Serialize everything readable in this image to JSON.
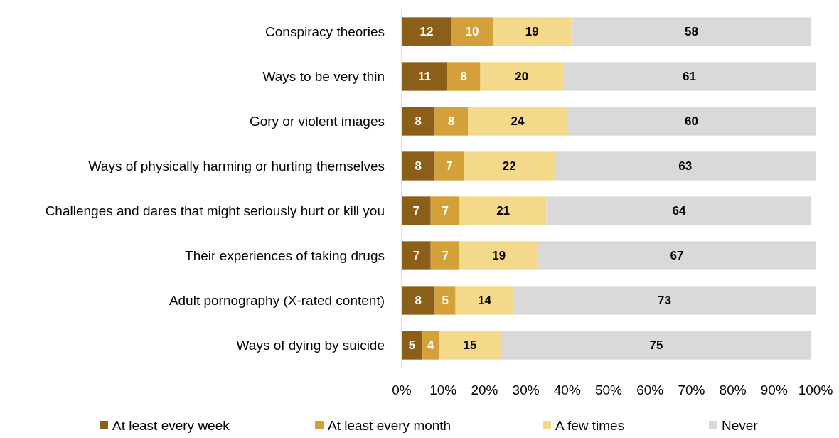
{
  "chart_data": {
    "type": "bar",
    "orientation": "horizontal",
    "stacked": true,
    "data_labels": true,
    "legend": "bottom",
    "grid": false,
    "categories": [
      "Conspiracy theories",
      "Ways to be very thin",
      "Gory or violent images",
      "Ways of physically harming or hurting themselves",
      "Challenges and dares that might seriously hurt or kill you",
      "Their experiences of taking drugs",
      "Adult pornography (X-rated content)",
      "Ways of dying by suicide"
    ],
    "series": [
      {
        "name": "At least every week",
        "color": "#8b5e1a",
        "values": [
          12,
          11,
          8,
          8,
          7,
          7,
          8,
          5
        ]
      },
      {
        "name": "At least every month",
        "color": "#d4a03a",
        "values": [
          10,
          8,
          8,
          7,
          7,
          7,
          5,
          4
        ]
      },
      {
        "name": "A few times",
        "color": "#f5d98b",
        "values": [
          19,
          20,
          24,
          22,
          21,
          19,
          14,
          15
        ]
      },
      {
        "name": "Never",
        "color": "#d9d9d9",
        "values": [
          58,
          61,
          60,
          63,
          64,
          67,
          73,
          75
        ]
      }
    ],
    "xlim": [
      0,
      100
    ],
    "xticks": [
      {
        "value": 0,
        "label": "0%"
      },
      {
        "value": 10,
        "label": "10%"
      },
      {
        "value": 20,
        "label": "20%"
      },
      {
        "value": 30,
        "label": "30%"
      },
      {
        "value": 40,
        "label": "40%"
      },
      {
        "value": 50,
        "label": "50%"
      },
      {
        "value": 60,
        "label": "60%"
      },
      {
        "value": 70,
        "label": "70%"
      },
      {
        "value": 80,
        "label": "80%"
      },
      {
        "value": 90,
        "label": "90%"
      },
      {
        "value": 100,
        "label": "100%"
      }
    ]
  }
}
